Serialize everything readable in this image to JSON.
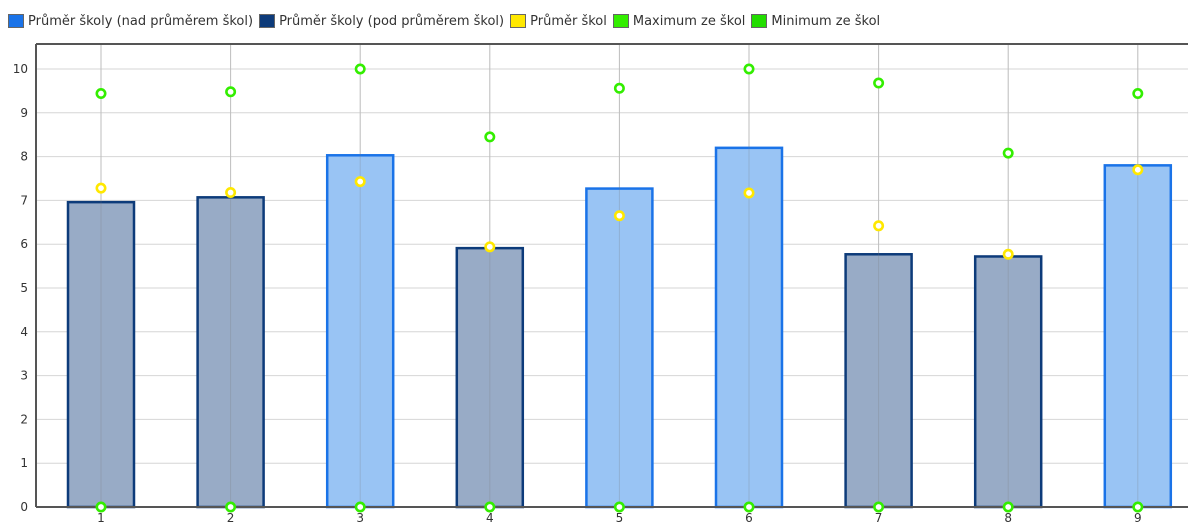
{
  "legend": [
    {
      "label": "Průměr školy (nad průměrem škol)",
      "color": "#1a73e8"
    },
    {
      "label": "Průměr školy (pod průměrem škol)",
      "color": "#0d3b7a"
    },
    {
      "label": "Průměr škol",
      "color": "#ffe800"
    },
    {
      "label": "Maximum ze škol",
      "color": "#33ee00"
    },
    {
      "label": "Minimum ze škol",
      "color": "#22dd00"
    }
  ],
  "colors": {
    "above_fill": "#99c4f4",
    "above_stroke": "#1a73e8",
    "below_fill": "#98abc6",
    "below_stroke": "#0d3b7a",
    "average_point": "#ffe800",
    "extreme_point": "#33ee00"
  },
  "chart_data": {
    "type": "bar",
    "categories": [
      "1",
      "2",
      "3",
      "4",
      "5",
      "6",
      "7",
      "8",
      "9"
    ],
    "series": [
      {
        "name": "Průměr školy (nad průměrem škol)",
        "values": [
          null,
          null,
          8.03,
          null,
          7.27,
          8.2,
          null,
          null,
          7.8
        ]
      },
      {
        "name": "Průměr školy (pod průměrem škol)",
        "values": [
          6.96,
          7.07,
          null,
          5.91,
          null,
          null,
          5.77,
          5.72,
          null
        ]
      },
      {
        "name": "Průměr škol",
        "values": [
          7.28,
          7.18,
          7.43,
          5.94,
          6.65,
          7.17,
          6.42,
          5.77,
          7.7
        ]
      },
      {
        "name": "Maximum ze škol",
        "values": [
          9.44,
          9.48,
          10.0,
          8.45,
          9.56,
          10.0,
          9.68,
          8.08,
          9.44
        ]
      },
      {
        "name": "Minimum ze škol",
        "values": [
          0,
          0,
          0,
          0,
          0,
          0,
          0,
          0,
          0
        ]
      }
    ],
    "ylim": [
      0,
      10
    ],
    "yticks": [
      0,
      1,
      2,
      3,
      4,
      5,
      6,
      7,
      8,
      9,
      10
    ],
    "grid": true,
    "legend_position": "top-left"
  }
}
